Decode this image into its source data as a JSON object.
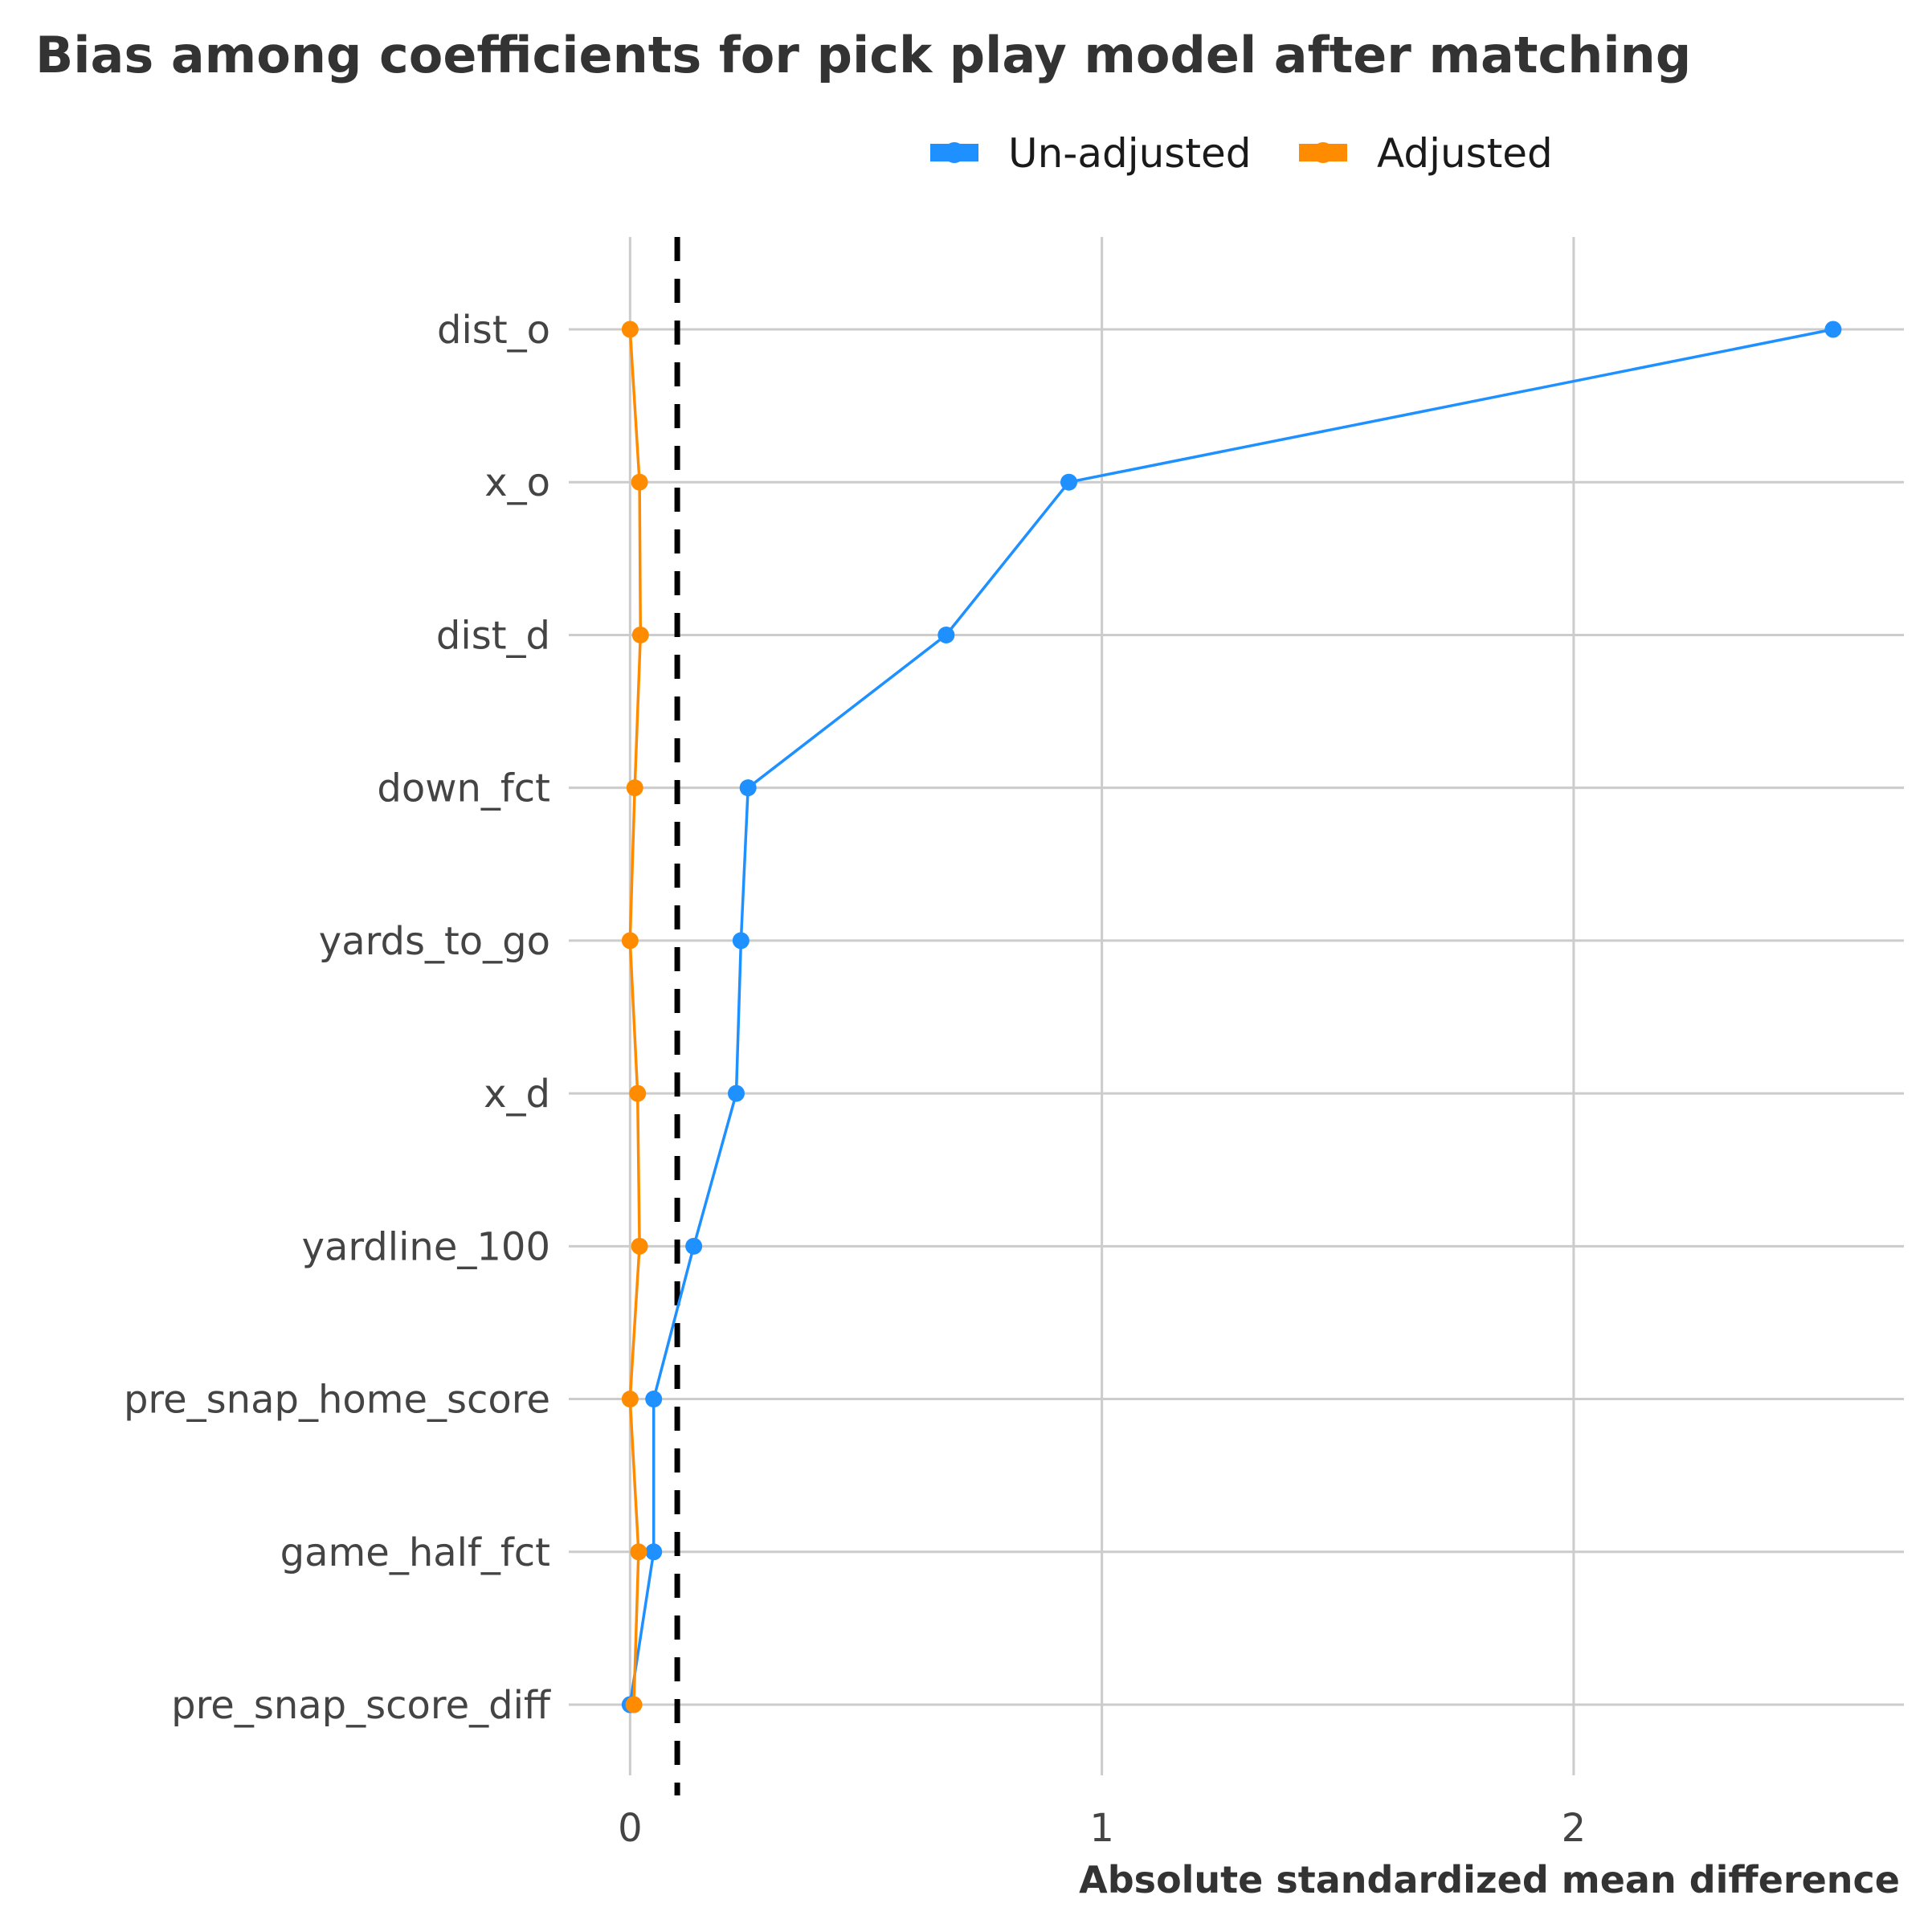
{
  "chart_data": {
    "type": "line",
    "title": "Bias among coefficients for pick play model after matching",
    "xlabel": "Absolute standardized mean difference",
    "ylabel": "",
    "xlim": [
      -0.13,
      2.7
    ],
    "xticks": [
      0,
      1,
      2
    ],
    "threshold": 0.1,
    "legend_position": "top-center",
    "grid": true,
    "categories": [
      "dist_o",
      "x_o",
      "dist_d",
      "down_fct",
      "yards_to_go",
      "x_d",
      "yardline_100",
      "pre_snap_home_score",
      "game_half_fct",
      "pre_snap_score_diff"
    ],
    "series": [
      {
        "name": "Un-adjusted",
        "color": "#1E90FF",
        "values": [
          2.55,
          0.93,
          0.67,
          0.25,
          0.235,
          0.225,
          0.135,
          0.05,
          0.05,
          0.0
        ]
      },
      {
        "name": "Adjusted",
        "color": "#FF8C00",
        "values": [
          0.0,
          0.02,
          0.022,
          0.01,
          0.0,
          0.016,
          0.02,
          0.0,
          0.018,
          0.008
        ]
      }
    ]
  }
}
